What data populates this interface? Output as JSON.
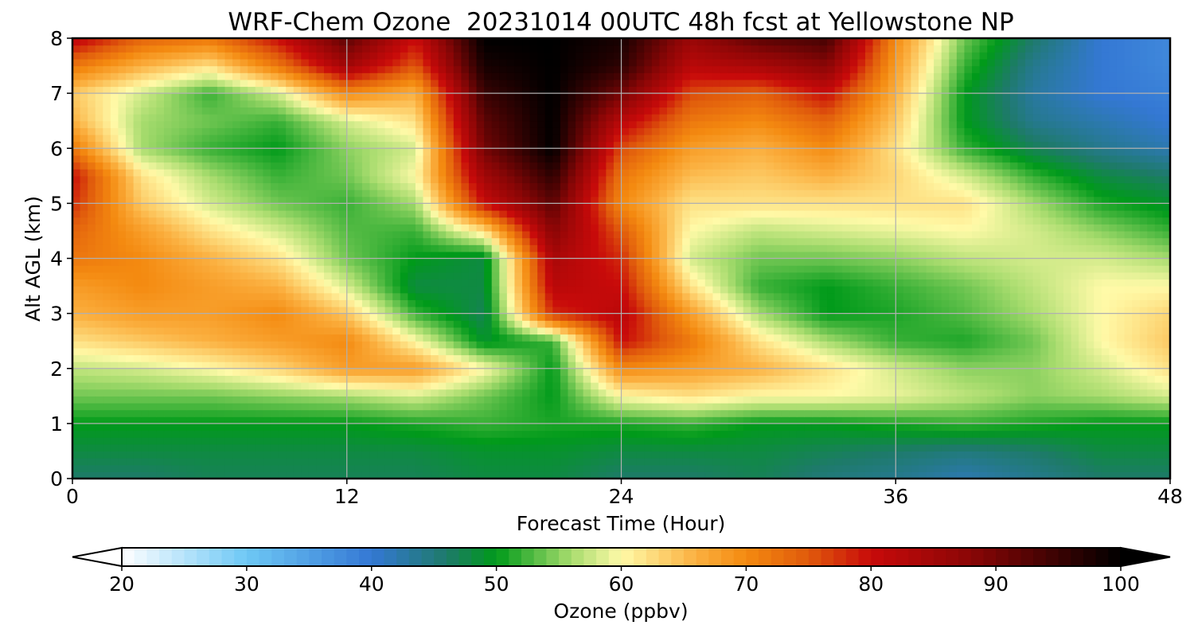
{
  "chart_data": {
    "type": "heatmap",
    "title": "WRF-Chem Ozone  20231014 00UTC 48h fcst at Yellowstone NP",
    "xlabel": "Forecast Time (Hour)",
    "ylabel": "Alt AGL (km)",
    "xlim": [
      0,
      48
    ],
    "ylim": [
      0,
      8
    ],
    "x_ticks": [
      "0",
      "12",
      "24",
      "36",
      "48"
    ],
    "y_ticks": [
      "0",
      "1",
      "2",
      "3",
      "4",
      "5",
      "6",
      "7",
      "8"
    ],
    "grid": true,
    "x": [
      0,
      3,
      6,
      9,
      12,
      15,
      18,
      21,
      24,
      27,
      30,
      33,
      36,
      39,
      42,
      45,
      48
    ],
    "y": [
      0,
      0.5,
      1,
      1.5,
      2,
      2.5,
      3,
      3.5,
      4,
      4.5,
      5,
      5.5,
      6,
      6.5,
      7,
      7.5,
      8
    ],
    "z": [
      [
        46,
        46,
        47,
        47,
        47,
        47,
        48,
        48,
        46,
        46,
        47,
        45,
        44,
        42,
        44,
        46,
        46
      ],
      [
        48,
        48,
        48,
        48,
        48,
        48,
        49,
        49,
        48,
        48,
        48,
        47,
        46,
        45,
        46,
        48,
        48
      ],
      [
        50,
        50,
        50,
        50,
        50,
        51,
        52,
        51,
        51,
        52,
        50,
        50,
        51,
        52,
        51,
        50,
        50
      ],
      [
        54,
        54,
        54,
        55,
        56,
        58,
        54,
        50,
        60,
        62,
        60,
        60,
        59,
        57,
        55,
        56,
        58
      ],
      [
        57,
        58,
        60,
        63,
        68,
        68,
        60,
        50,
        70,
        68,
        66,
        62,
        58,
        55,
        55,
        58,
        62
      ],
      [
        62,
        64,
        66,
        68,
        70,
        60,
        49,
        52,
        80,
        72,
        62,
        56,
        52,
        51,
        54,
        60,
        64
      ],
      [
        66,
        68,
        68,
        70,
        64,
        52,
        47,
        78,
        82,
        68,
        56,
        50,
        51,
        53,
        56,
        60,
        63
      ],
      [
        68,
        70,
        68,
        66,
        58,
        48,
        48,
        82,
        80,
        62,
        52,
        50,
        52,
        54,
        57,
        60,
        60
      ],
      [
        72,
        70,
        66,
        62,
        54,
        50,
        48,
        84,
        78,
        58,
        54,
        54,
        55,
        57,
        58,
        58,
        56
      ],
      [
        74,
        68,
        62,
        58,
        53,
        52,
        62,
        88,
        75,
        60,
        57,
        58,
        59,
        60,
        58,
        55,
        52
      ],
      [
        78,
        64,
        58,
        54,
        52,
        56,
        80,
        92,
        70,
        62,
        62,
        62,
        62,
        62,
        56,
        51,
        49
      ],
      [
        80,
        62,
        56,
        52,
        54,
        60,
        85,
        96,
        72,
        65,
        64,
        66,
        63,
        58,
        52,
        48,
        46
      ],
      [
        72,
        56,
        52,
        50,
        55,
        58,
        90,
        100,
        76,
        68,
        66,
        70,
        62,
        52,
        47,
        44,
        42
      ],
      [
        66,
        56,
        54,
        52,
        58,
        62,
        92,
        100,
        82,
        72,
        70,
        74,
        64,
        50,
        44,
        42,
        40
      ],
      [
        64,
        58,
        52,
        58,
        70,
        66,
        95,
        100,
        90,
        76,
        74,
        80,
        66,
        50,
        43,
        40,
        39
      ],
      [
        72,
        66,
        62,
        72,
        85,
        75,
        98,
        100,
        96,
        82,
        84,
        88,
        68,
        52,
        44,
        40,
        38
      ],
      [
        82,
        74,
        72,
        80,
        92,
        80,
        100,
        100,
        98,
        86,
        92,
        94,
        70,
        54,
        46,
        40,
        38
      ]
    ],
    "colorbar": {
      "label": "Ozone  (ppbv)",
      "range": [
        20,
        100
      ],
      "ticks": [
        "20",
        "30",
        "40",
        "50",
        "60",
        "70",
        "80",
        "90",
        "100"
      ],
      "extend": "both",
      "colormap_stops": [
        {
          "v": 20,
          "c": "#ffffff"
        },
        {
          "v": 30,
          "c": "#6ec8f5"
        },
        {
          "v": 40,
          "c": "#3478d4"
        },
        {
          "v": 46,
          "c": "#1e7a6a"
        },
        {
          "v": 50,
          "c": "#009a1a"
        },
        {
          "v": 56,
          "c": "#a8dc6e"
        },
        {
          "v": 60,
          "c": "#fffaa8"
        },
        {
          "v": 66,
          "c": "#fbb040"
        },
        {
          "v": 70,
          "c": "#f48a10"
        },
        {
          "v": 75,
          "c": "#e05a0c"
        },
        {
          "v": 80,
          "c": "#c80a0a"
        },
        {
          "v": 88,
          "c": "#8a0606"
        },
        {
          "v": 100,
          "c": "#000000"
        }
      ]
    }
  }
}
